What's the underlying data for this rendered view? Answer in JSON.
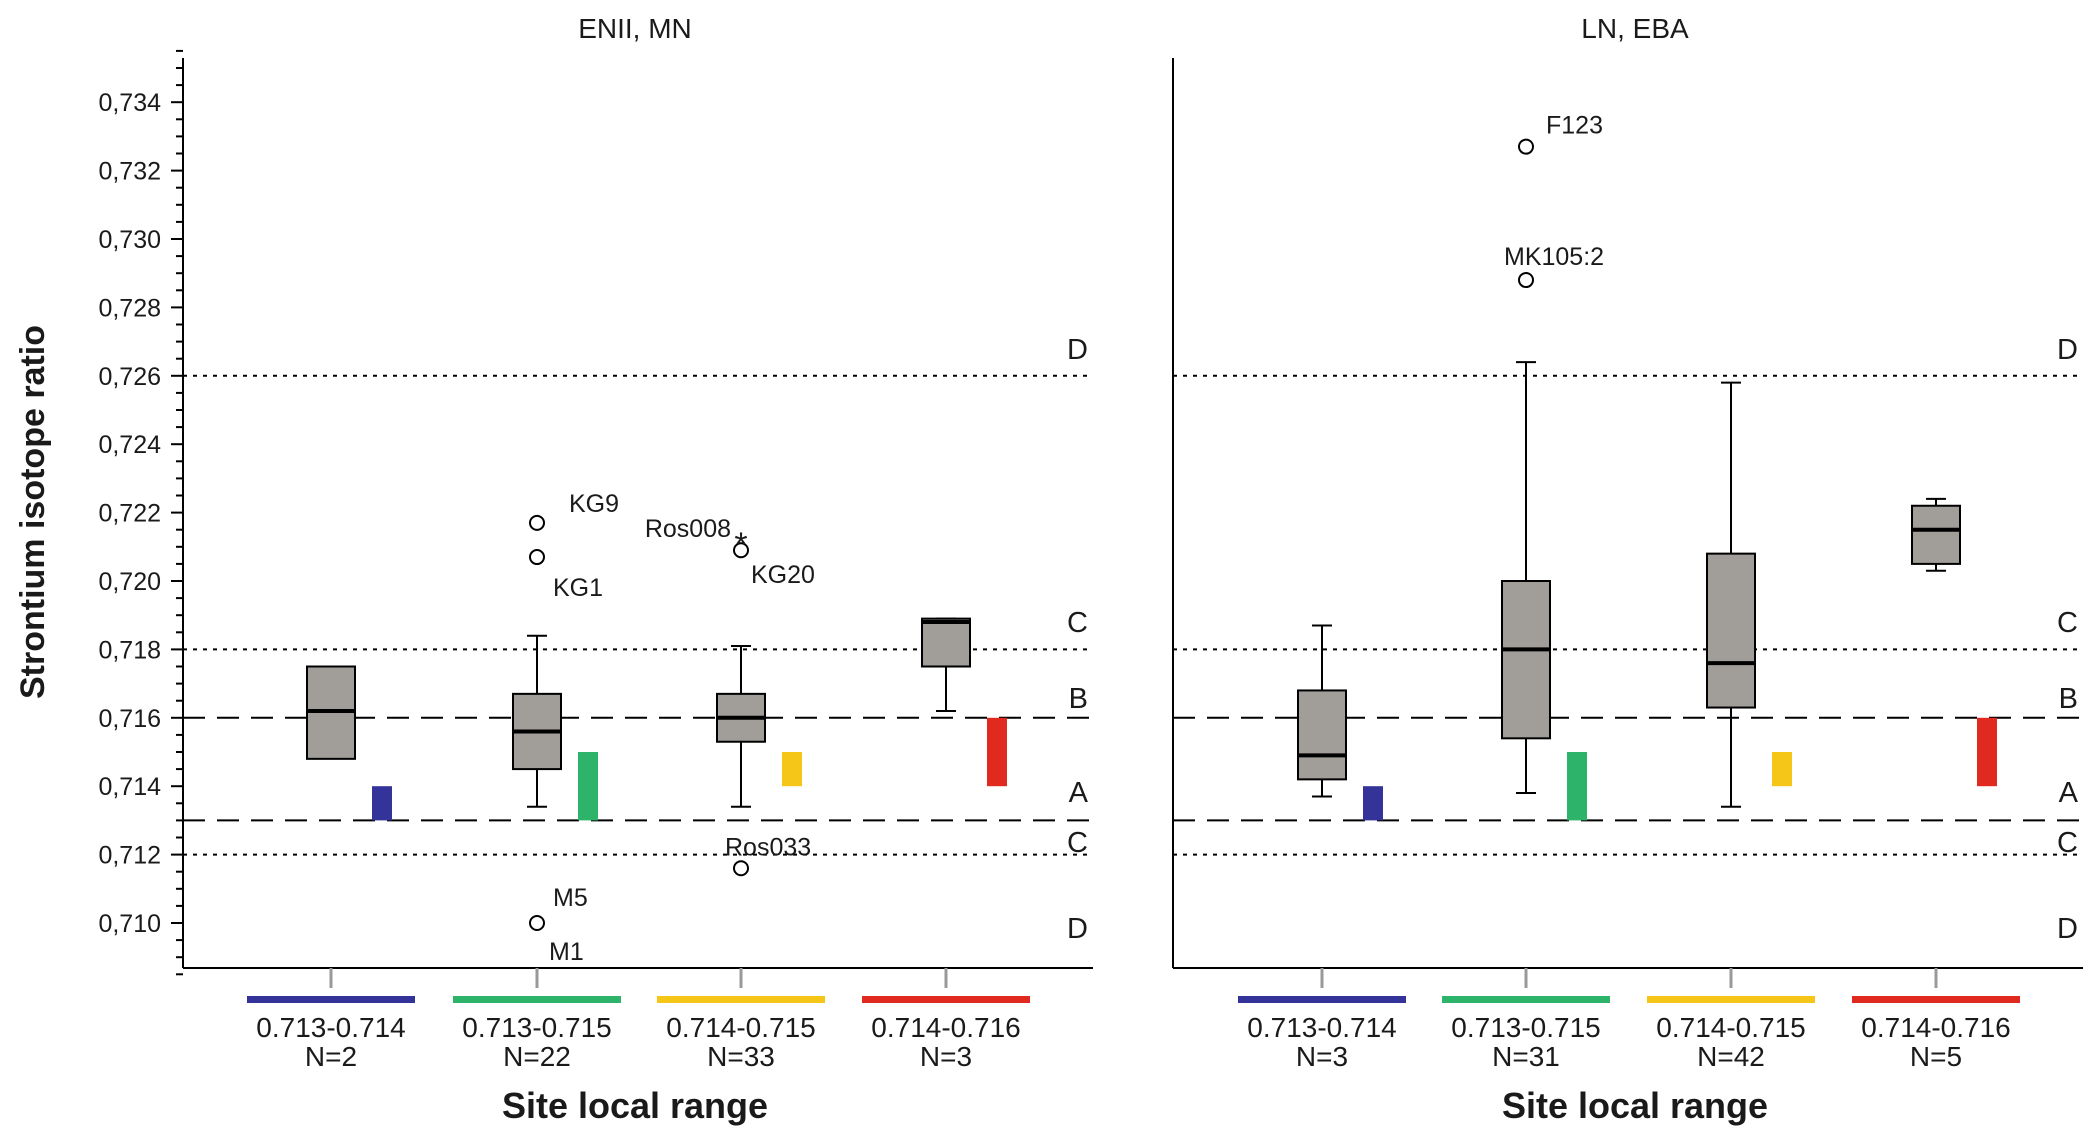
{
  "chart_data": {
    "type": "box",
    "ylabel": "Strontium isotope ratio",
    "xlabel": "Site local range",
    "ylim": [
      0.7085,
      0.7355
    ],
    "yticks": [
      "0,710",
      "0,712",
      "0,714",
      "0,716",
      "0,718",
      "0,720",
      "0,722",
      "0,724",
      "0,726",
      "0,728",
      "0,730",
      "0,732",
      "0,734"
    ],
    "ytick_values": [
      0.71,
      0.712,
      0.714,
      0.716,
      0.718,
      0.72,
      0.722,
      0.724,
      0.726,
      0.728,
      0.73,
      0.732,
      0.734
    ],
    "reference_lines": [
      {
        "y": 0.726,
        "style": "dotted",
        "label": "D"
      },
      {
        "y": 0.718,
        "style": "dotted",
        "label": "C"
      },
      {
        "y": 0.716,
        "style": "dashed",
        "label": "B"
      },
      {
        "y": 0.713,
        "style": "dashed",
        "label": "A"
      },
      {
        "y": 0.712,
        "style": "dotted",
        "label": "C"
      }
    ],
    "bottom_label": "D",
    "panels": [
      {
        "title": "ENII, MN",
        "groups": [
          {
            "range": "0.713-0.714",
            "n": "N=2",
            "color": "#33339a",
            "local": [
              0.713,
              0.714
            ],
            "box": {
              "q1": 0.7148,
              "median": 0.7162,
              "q3": 0.7175
            },
            "outliers": []
          },
          {
            "range": "0.713-0.715",
            "n": "N=22",
            "color": "#2eb36b",
            "local": [
              0.713,
              0.715
            ],
            "box": {
              "q1": 0.7145,
              "median": 0.7156,
              "q3": 0.7167,
              "low": 0.7134,
              "high": 0.7184
            },
            "outliers": [
              {
                "y": 0.7217,
                "label": "KG9",
                "marker": "circle"
              },
              {
                "y": 0.7207,
                "label": "KG1",
                "marker": "circle"
              },
              {
                "y": 0.71,
                "label": "M5",
                "marker": "circle"
              },
              {
                "y": 0.71,
                "label": "M1",
                "marker": "none"
              }
            ]
          },
          {
            "range": "0.714-0.715",
            "n": "N=33",
            "color": "#f5c518",
            "local": [
              0.714,
              0.715
            ],
            "box": {
              "q1": 0.7153,
              "median": 0.716,
              "q3": 0.7167,
              "low": 0.7134,
              "high": 0.7181
            },
            "outliers": [
              {
                "y": 0.7212,
                "label": "Ros008",
                "marker": "star"
              },
              {
                "y": 0.7209,
                "label": "KG20",
                "marker": "circle"
              },
              {
                "y": 0.7116,
                "label": "Ros033",
                "marker": "circle"
              }
            ]
          },
          {
            "range": "0.714-0.716",
            "n": "N=3",
            "color": "#e02a1f",
            "local": [
              0.714,
              0.716
            ],
            "box": {
              "q1": 0.7175,
              "median": 0.7188,
              "q3": 0.7189,
              "low": 0.7162,
              "high": 0.7189
            },
            "outliers": []
          }
        ]
      },
      {
        "title": "LN, EBA",
        "groups": [
          {
            "range": "0.713-0.714",
            "n": "N=3",
            "color": "#33339a",
            "local": [
              0.713,
              0.714
            ],
            "box": {
              "q1": 0.7142,
              "median": 0.7149,
              "q3": 0.7168,
              "low": 0.7137,
              "high": 0.7187
            },
            "outliers": []
          },
          {
            "range": "0.713-0.715",
            "n": "N=31",
            "color": "#2eb36b",
            "local": [
              0.713,
              0.715
            ],
            "box": {
              "q1": 0.7154,
              "median": 0.718,
              "q3": 0.72,
              "low": 0.7138,
              "high": 0.7264
            },
            "outliers": [
              {
                "y": 0.7327,
                "label": "F123",
                "marker": "circle"
              },
              {
                "y": 0.7288,
                "label": "MK105:2",
                "marker": "circle"
              }
            ]
          },
          {
            "range": "0.714-0.715",
            "n": "N=42",
            "color": "#f5c518",
            "local": [
              0.714,
              0.715
            ],
            "box": {
              "q1": 0.7163,
              "median": 0.7176,
              "q3": 0.7208,
              "low": 0.7134,
              "high": 0.7258
            },
            "outliers": []
          },
          {
            "range": "0.714-0.716",
            "n": "N=5",
            "color": "#e02a1f",
            "local": [
              0.714,
              0.716
            ],
            "box": {
              "q1": 0.7205,
              "median": 0.7215,
              "q3": 0.7222,
              "low": 0.7203,
              "high": 0.7224
            },
            "outliers": []
          }
        ]
      }
    ]
  }
}
